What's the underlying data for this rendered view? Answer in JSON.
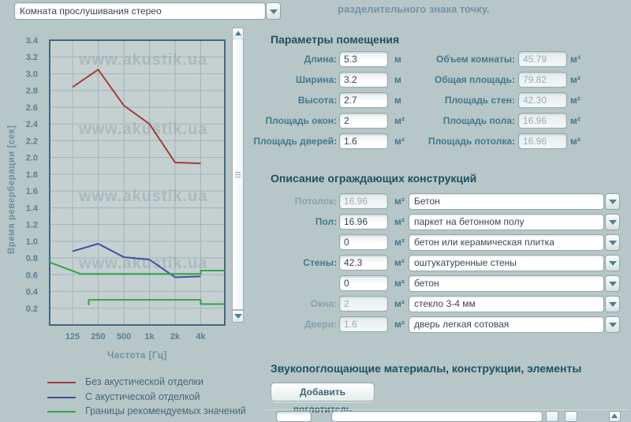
{
  "header": {
    "room_type_value": "Комната прослушивания стерео",
    "note": "разделительного знака точку."
  },
  "chart_data": {
    "type": "line",
    "title": "",
    "xlabel": "Частота [Гц]",
    "ylabel": "Время реверберации [сек]",
    "categories": [
      "125",
      "250",
      "500",
      "1k",
      "2k",
      "4k"
    ],
    "ylim": [
      0,
      3.4
    ],
    "ytick_step": 0.2,
    "ytick_labels": [
      "0.2",
      "0.4",
      "0.6",
      "0.8",
      "1.0",
      "1.2",
      "1.4",
      "1.6",
      "1.8",
      "2.0",
      "2.2",
      "2.4",
      "2.6",
      "2.8",
      "3.0",
      "3.2",
      "3.4"
    ],
    "grid": true,
    "legend_position": "bottom-left",
    "watermark": "www.akustik.ua",
    "series": [
      {
        "name": "Без акустической отделки",
        "color": "#a53d3d",
        "values": [
          2.84,
          3.05,
          2.62,
          2.4,
          1.94,
          1.93
        ]
      },
      {
        "name": "С акустической отделкой",
        "color": "#3a53a4",
        "values": [
          0.88,
          0.97,
          0.81,
          0.78,
          0.57,
          0.58
        ]
      },
      {
        "name": "Границы рекомендуемых значений",
        "color": "#35a348",
        "upper": [
          [
            -0.91,
            0.75
          ],
          [
            0.31,
            0.61
          ],
          [
            5,
            0.61
          ],
          [
            5,
            0.65
          ],
          [
            6.1,
            0.65
          ]
        ],
        "lower": [
          [
            0.63,
            0.235
          ],
          [
            0.63,
            0.3
          ],
          [
            5,
            0.3
          ],
          [
            5,
            0.25
          ],
          [
            6.1,
            0.25
          ]
        ]
      }
    ]
  },
  "params": {
    "title": "Параметры помещения",
    "left": [
      {
        "label": "Длина:",
        "value": "5.3",
        "unit": "м",
        "disabled": false
      },
      {
        "label": "Ширина:",
        "value": "3.2",
        "unit": "м",
        "disabled": false
      },
      {
        "label": "Высота:",
        "value": "2.7",
        "unit": "м",
        "disabled": false
      },
      {
        "label": "Площадь окон:",
        "value": "2",
        "unit": "м²",
        "disabled": false
      },
      {
        "label": "Площадь дверей:",
        "value": "1.6",
        "unit": "м²",
        "disabled": false
      }
    ],
    "right": [
      {
        "label": "Объем комнаты:",
        "value": "45.79",
        "unit": "м³",
        "disabled": true
      },
      {
        "label": "Общая площадь:",
        "value": "79.82",
        "unit": "м²",
        "disabled": true
      },
      {
        "label": "Площадь стен:",
        "value": "42.30",
        "unit": "м²",
        "disabled": true
      },
      {
        "label": "Площадь пола:",
        "value": "16.96",
        "unit": "м²",
        "disabled": true
      },
      {
        "label": "Площадь потолка:",
        "value": "16.96",
        "unit": "м²",
        "disabled": true
      }
    ]
  },
  "constructions": {
    "title": "Описание ограждающих конструкций",
    "rows": [
      {
        "label": "Потолок:",
        "area": "16.96",
        "unit": "м²",
        "material": "Бетон",
        "area_disabled": true
      },
      {
        "label": "Пол:",
        "area": "16.96",
        "unit": "м²",
        "material": "паркет на бетонном полу",
        "area_disabled": false
      },
      {
        "label": "",
        "area": "0",
        "unit": "м²",
        "material": "бетон или керамическая плитка",
        "area_disabled": false
      },
      {
        "label": "Стены:",
        "area": "42.3",
        "unit": "м²",
        "material": "оштукатуренные стены",
        "area_disabled": false
      },
      {
        "label": "",
        "area": "0",
        "unit": "м²",
        "material": "бетон",
        "area_disabled": false
      },
      {
        "label": "Окна:",
        "area": "2",
        "unit": "м²",
        "material": "стекло 3-4 мм",
        "area_disabled": true
      },
      {
        "label": "Двери:",
        "area": "1.6",
        "unit": "м²",
        "material": "дверь легкая сотовая",
        "area_disabled": true
      }
    ]
  },
  "absorbers": {
    "title": "Звукопоглощающие материалы, конструкции, элементы",
    "add_button": "Добавить поглотитель"
  }
}
